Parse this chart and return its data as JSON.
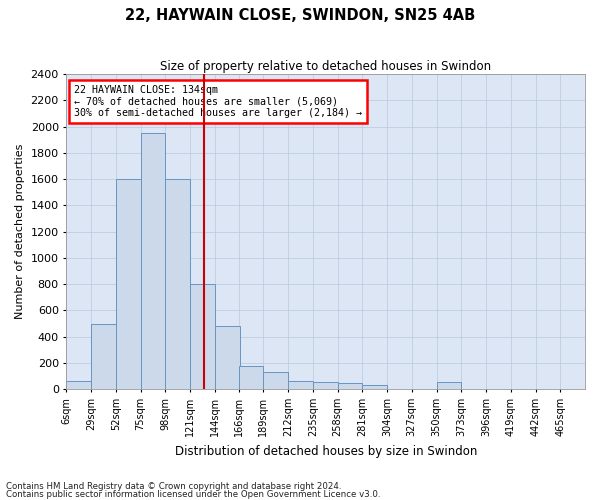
{
  "title_line1": "22, HAYWAIN CLOSE, SWINDON, SN25 4AB",
  "title_line2": "Size of property relative to detached houses in Swindon",
  "xlabel": "Distribution of detached houses by size in Swindon",
  "ylabel": "Number of detached properties",
  "footnote1": "Contains HM Land Registry data © Crown copyright and database right 2024.",
  "footnote2": "Contains public sector information licensed under the Open Government Licence v3.0.",
  "annotation_line1": "22 HAYWAIN CLOSE: 134sqm",
  "annotation_line2": "← 70% of detached houses are smaller (5,069)",
  "annotation_line3": "30% of semi-detached houses are larger (2,184) →",
  "bar_color": "#ccd9ea",
  "bar_edge_color": "#6694c4",
  "vline_color": "#cc0000",
  "vline_x": 134,
  "categories": [
    "6sqm",
    "29sqm",
    "52sqm",
    "75sqm",
    "98sqm",
    "121sqm",
    "144sqm",
    "166sqm",
    "189sqm",
    "212sqm",
    "235sqm",
    "258sqm",
    "281sqm",
    "304sqm",
    "327sqm",
    "350sqm",
    "373sqm",
    "396sqm",
    "419sqm",
    "442sqm",
    "465sqm"
  ],
  "bin_edges": [
    6,
    29,
    52,
    75,
    98,
    121,
    144,
    166,
    189,
    212,
    235,
    258,
    281,
    304,
    327,
    350,
    373,
    396,
    419,
    442,
    465
  ],
  "bin_width": 23,
  "values": [
    60,
    500,
    1600,
    1950,
    1600,
    800,
    480,
    175,
    130,
    60,
    55,
    50,
    30,
    0,
    0,
    55,
    0,
    0,
    0,
    0,
    0
  ],
  "ylim": [
    0,
    2400
  ],
  "yticks": [
    0,
    200,
    400,
    600,
    800,
    1000,
    1200,
    1400,
    1600,
    1800,
    2000,
    2200,
    2400
  ],
  "background_color": "#ffffff",
  "plot_bg_color": "#dce6f5",
  "grid_color": "#b8c8dc",
  "figsize": [
    6.0,
    5.0
  ],
  "dpi": 100
}
